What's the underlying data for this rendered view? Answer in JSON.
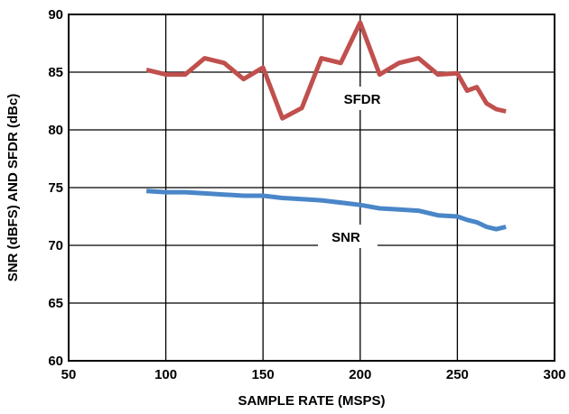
{
  "chart_data": {
    "type": "line",
    "title": "",
    "xlabel": "SAMPLE RATE (MSPS)",
    "ylabel": "SNR (dBFS) AND SFDR (dBc)",
    "xlim": [
      50,
      300
    ],
    "ylim": [
      60,
      90
    ],
    "x_ticks": [
      "50",
      "100",
      "150",
      "200",
      "250",
      "300"
    ],
    "y_ticks": [
      "60",
      "65",
      "70",
      "75",
      "80",
      "85",
      "90"
    ],
    "grid": true,
    "series": [
      {
        "name": "SFDR",
        "color": "#c0504d",
        "x": [
          90,
          100,
          110,
          120,
          130,
          140,
          150,
          160,
          170,
          180,
          190,
          200,
          210,
          220,
          230,
          240,
          250,
          255,
          260,
          265,
          270,
          275
        ],
        "values": [
          85.2,
          84.8,
          84.8,
          86.2,
          85.8,
          84.4,
          85.4,
          81.0,
          81.9,
          86.2,
          85.8,
          89.3,
          84.8,
          85.8,
          86.2,
          84.8,
          84.9,
          83.4,
          83.7,
          82.3,
          81.8,
          81.6
        ]
      },
      {
        "name": "SNR",
        "color": "#4a86c8",
        "x": [
          90,
          100,
          110,
          120,
          130,
          140,
          150,
          160,
          170,
          180,
          190,
          200,
          210,
          220,
          230,
          240,
          250,
          255,
          260,
          265,
          270,
          275
        ],
        "values": [
          74.7,
          74.6,
          74.6,
          74.5,
          74.4,
          74.3,
          74.3,
          74.1,
          74.0,
          73.9,
          73.7,
          73.5,
          73.2,
          73.1,
          73.0,
          72.6,
          72.5,
          72.2,
          72.0,
          71.6,
          71.4,
          71.6
        ]
      }
    ]
  }
}
